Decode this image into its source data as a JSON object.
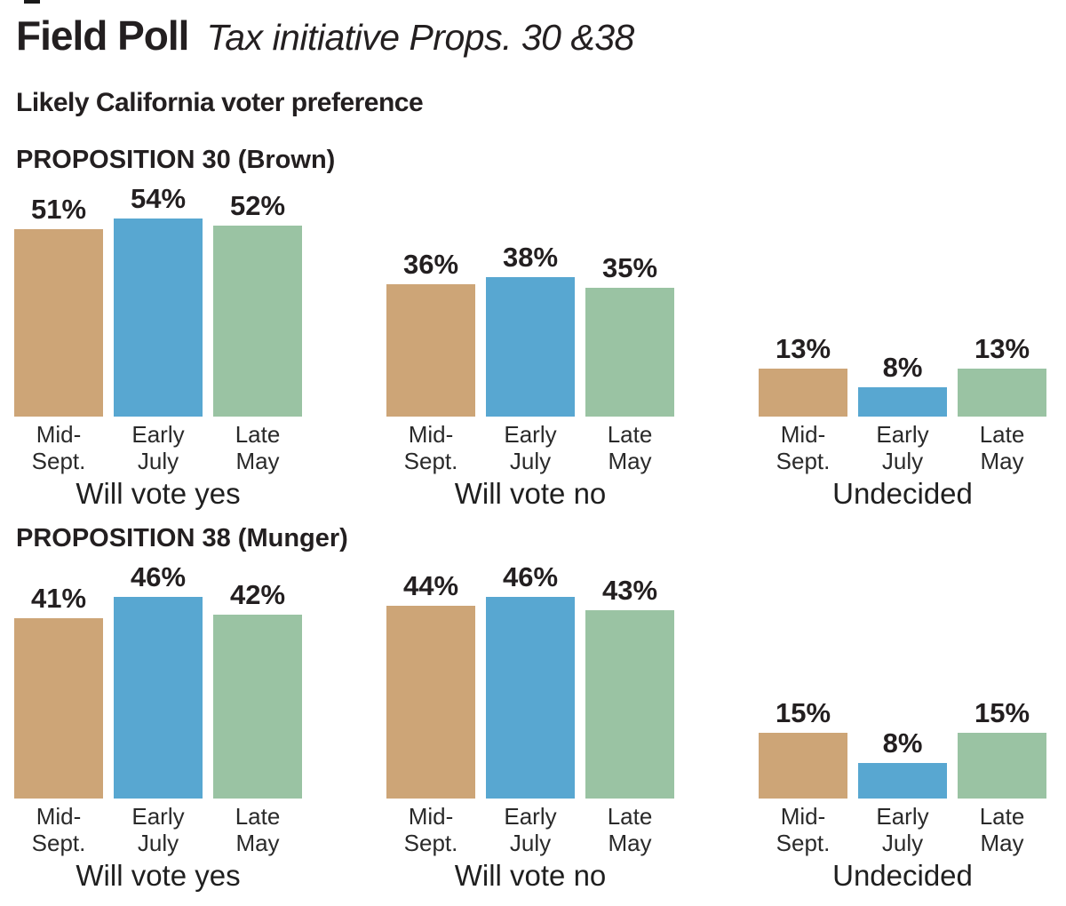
{
  "header": {
    "title": "Field Poll",
    "title_note": "Tax initiative Props. 30 &38",
    "subtitle": "Likely California voter preference"
  },
  "colors": {
    "bar_colors": [
      "#CDA577",
      "#58A7D1",
      "#9AC3A3"
    ],
    "text": "#231F20",
    "background": "#FFFFFF"
  },
  "chart_data": {
    "type": "bar",
    "title": "Field Poll — Tax initiative Props. 30 &38",
    "subtitle": "Likely California voter preference",
    "categories": [
      "Mid-Sept.",
      "Early July",
      "Late May"
    ],
    "category_lines": [
      [
        "Mid-",
        "Sept."
      ],
      [
        "Early",
        "July"
      ],
      [
        "Late",
        "May"
      ]
    ],
    "category_colors": [
      "#CDA577",
      "#58A7D1",
      "#9AC3A3"
    ],
    "value_suffix": "%",
    "ylim": [
      0,
      60
    ],
    "grid": false,
    "legend_position": "none",
    "sections": [
      {
        "heading": "PROPOSITION 30 (Brown)",
        "groups": [
          {
            "label": "Will vote yes",
            "values": [
              51,
              54,
              52
            ],
            "value_labels": [
              "51%",
              "54%",
              "52%"
            ]
          },
          {
            "label": "Will vote no",
            "values": [
              36,
              38,
              35
            ],
            "value_labels": [
              "36%",
              "38%",
              "35%"
            ]
          },
          {
            "label": "Undecided",
            "values": [
              13,
              8,
              13
            ],
            "value_labels": [
              "13%",
              "8%",
              "13%"
            ]
          }
        ]
      },
      {
        "heading": "PROPOSITION 38 (Munger)",
        "groups": [
          {
            "label": "Will vote yes",
            "values": [
              41,
              46,
              42
            ],
            "value_labels": [
              "41%",
              "46%",
              "42%"
            ]
          },
          {
            "label": "Will vote no",
            "values": [
              44,
              46,
              43
            ],
            "value_labels": [
              "44%",
              "46%",
              "43%"
            ]
          },
          {
            "label": "Undecided",
            "values": [
              15,
              8,
              15
            ],
            "value_labels": [
              "15%",
              "8%",
              "15%"
            ]
          }
        ]
      }
    ]
  }
}
